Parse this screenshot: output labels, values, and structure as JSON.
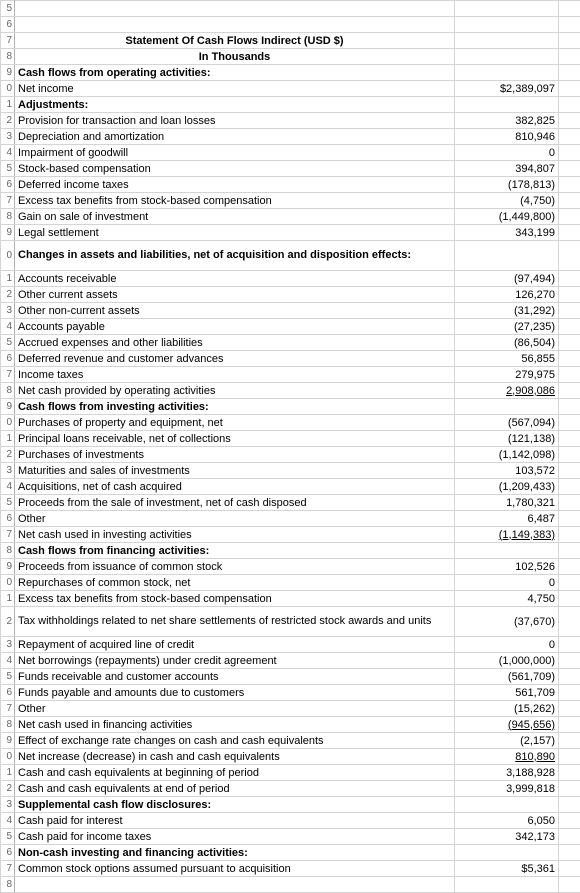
{
  "colors": {
    "grid": "#d4d4d4",
    "text": "#000000",
    "background": "#ffffff",
    "rownum": "#666666"
  },
  "fontsize": 11,
  "rownum_start": 5,
  "title1": "Statement Of Cash Flows Indirect (USD $)",
  "title2": "In Thousands",
  "rows": [
    {
      "label": "Statement Of Cash Flows Indirect (USD $)",
      "value": "",
      "bold": true,
      "center": true
    },
    {
      "label": "In Thousands",
      "value": "",
      "bold": true,
      "center": true
    },
    {
      "label": "Cash flows from operating activities:",
      "value": "",
      "bold": true
    },
    {
      "label": "Net income",
      "value": "$2,389,097"
    },
    {
      "label": "Adjustments:",
      "value": "",
      "bold": true
    },
    {
      "label": "Provision for transaction and loan losses",
      "value": "382,825"
    },
    {
      "label": "Depreciation and amortization",
      "value": "810,946"
    },
    {
      "label": "Impairment of goodwill",
      "value": "0"
    },
    {
      "label": "Stock-based compensation",
      "value": "394,807"
    },
    {
      "label": "Deferred income taxes",
      "value": "(178,813)"
    },
    {
      "label": "Excess tax benefits from stock-based compensation",
      "value": "(4,750)"
    },
    {
      "label": "Gain on sale of investment",
      "value": "(1,449,800)"
    },
    {
      "label": "Legal settlement",
      "value": "343,199"
    },
    {
      "label": "Changes in assets and liabilities, net of acquisition and disposition effects:",
      "value": "",
      "bold": true,
      "wrap": true
    },
    {
      "label": "Accounts receivable",
      "value": "(97,494)"
    },
    {
      "label": "Other current assets",
      "value": "126,270"
    },
    {
      "label": "Other non-current assets",
      "value": "(31,292)"
    },
    {
      "label": "Accounts payable",
      "value": "(27,235)"
    },
    {
      "label": "Accrued expenses and other liabilities",
      "value": "(86,504)"
    },
    {
      "label": "Deferred revenue and customer advances",
      "value": "56,855"
    },
    {
      "label": "Income taxes",
      "value": "279,975"
    },
    {
      "label": "Net cash provided by operating activities",
      "value": "2,908,086",
      "val_underline": true
    },
    {
      "label": "Cash flows from investing activities:",
      "value": "",
      "bold": true
    },
    {
      "label": "Purchases of property and equipment, net",
      "value": "(567,094)"
    },
    {
      "label": "Principal loans receivable, net of collections",
      "value": "(121,138)"
    },
    {
      "label": "Purchases of investments",
      "value": "(1,142,098)"
    },
    {
      "label": "Maturities and sales of investments",
      "value": "103,572"
    },
    {
      "label": "Acquisitions, net of cash acquired",
      "value": "(1,209,433)"
    },
    {
      "label": "Proceeds from the sale of investment, net of cash disposed",
      "value": "1,780,321"
    },
    {
      "label": "Other",
      "value": "6,487"
    },
    {
      "label": "Net cash used in investing activities",
      "value": "(1,149,383)",
      "val_underline": true
    },
    {
      "label": "Cash flows from financing activities:",
      "value": "",
      "bold": true
    },
    {
      "label": "Proceeds from issuance of common stock",
      "value": "102,526"
    },
    {
      "label": "Repurchases of common stock, net",
      "value": "0"
    },
    {
      "label": "Excess tax benefits from stock-based compensation",
      "value": "4,750"
    },
    {
      "label": "Tax withholdings related to net share settlements of restricted stock awards and units",
      "value": "(37,670)",
      "wrap": true
    },
    {
      "label": "Repayment of acquired line of credit",
      "value": "0"
    },
    {
      "label": "Net borrowings (repayments) under credit agreement",
      "value": "(1,000,000)"
    },
    {
      "label": "Funds receivable and customer accounts",
      "value": "(561,709)"
    },
    {
      "label": "Funds payable and amounts due to customers",
      "value": "561,709"
    },
    {
      "label": "Other",
      "value": "(15,262)"
    },
    {
      "label": "Net cash used in financing activities",
      "value": "(945,656)",
      "val_underline": true
    },
    {
      "label": "Effect of exchange rate changes on cash and cash equivalents",
      "value": "(2,157)"
    },
    {
      "label": "Net increase (decrease) in cash and cash equivalents",
      "value": "810,890",
      "val_underline": true
    },
    {
      "label": "Cash and cash equivalents at beginning of period",
      "value": "3,188,928"
    },
    {
      "label": "Cash and cash equivalents at end of period",
      "value": "3,999,818"
    },
    {
      "label": "Supplemental cash flow disclosures:",
      "value": "",
      "bold": true
    },
    {
      "label": "Cash paid for interest",
      "value": "6,050"
    },
    {
      "label": "Cash paid for income taxes",
      "value": "342,173"
    },
    {
      "label": "Non-cash investing and financing activities:",
      "value": "",
      "bold": true
    },
    {
      "label": "Common stock options assumed pursuant to acquisition",
      "value": "$5,361"
    },
    {
      "label": "",
      "value": ""
    }
  ]
}
